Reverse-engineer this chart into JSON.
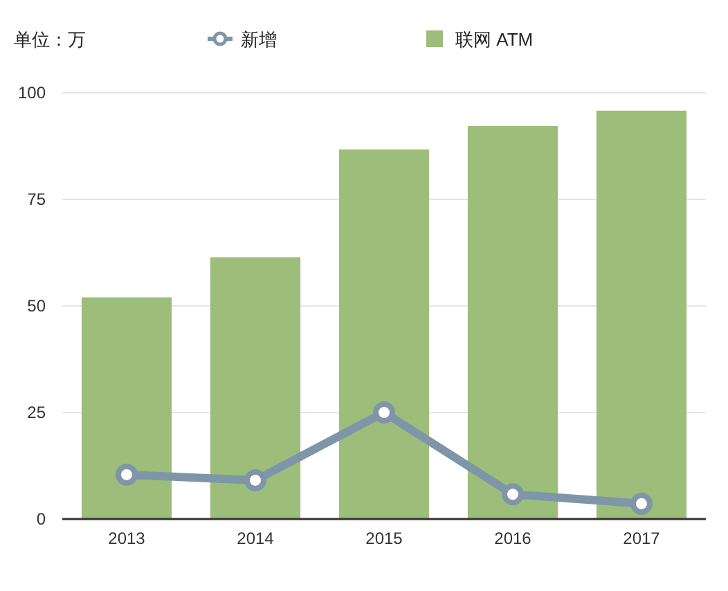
{
  "chart_data": {
    "type": "bar",
    "ylabel": "单位：万",
    "categories": [
      "2013",
      "2014",
      "2015",
      "2016",
      "2017"
    ],
    "series": [
      {
        "name": "新增",
        "type": "line",
        "color": "#7f96a8",
        "marker": "circle",
        "values": [
          10.4,
          9.1,
          25,
          5.8,
          3.6
        ]
      },
      {
        "name": "联网 ATM",
        "color": "#9dbd7a",
        "values": [
          52,
          61.4,
          86.7,
          92.2,
          95.8
        ]
      }
    ],
    "ylim": [
      0,
      100
    ],
    "yticks": [
      0,
      25,
      50,
      75,
      100
    ],
    "grid": "y",
    "legend": "top"
  }
}
